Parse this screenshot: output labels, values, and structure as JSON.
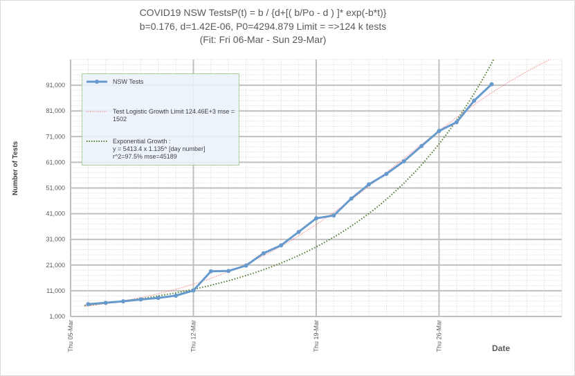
{
  "title": {
    "line1": "COVID19  NSW TestsP(t) = b / {d+[( b/Po - d ) ]* exp(-b*t)}",
    "line2": "b=0.176, d=1.42E-06, P0=4294.879  Limit = =>124 k tests",
    "line3": "(Fit: Fri 06-Mar - Sun 29-Mar)"
  },
  "colors": {
    "actual": "#6699cc",
    "logistic": "#ff6666",
    "exponential": "#4e7a2e",
    "grid_major": "#bfbfbf",
    "grid_minor": "#e6e6e6"
  },
  "chart_data": {
    "type": "line",
    "xlabel": "Date",
    "ylabel": "Number of Tests",
    "x_tick_labels": [
      "Thu 05-Mar",
      "Thu 12-Mar",
      "Thu 19-Mar",
      "Thu 26-Mar"
    ],
    "x_range_days": [
      0,
      28
    ],
    "y_ticks": [
      "1,000",
      "11,000",
      "21,000",
      "31,000",
      "41,000",
      "51,000",
      "61,000",
      "71,000",
      "81,000",
      "91,000"
    ],
    "ylim": [
      1000,
      101000
    ],
    "grid": true,
    "legend_position": "top-left",
    "series": [
      {
        "name": "NSW Tests",
        "style": "solid-markers",
        "x": [
          1,
          2,
          3,
          4,
          5,
          6,
          7,
          8,
          9,
          10,
          11,
          12,
          13,
          14,
          15,
          16,
          17,
          18,
          19,
          20,
          21,
          22,
          23,
          24
        ],
        "y": [
          5800,
          6300,
          6900,
          7600,
          8200,
          9100,
          11100,
          18600,
          18700,
          20800,
          25600,
          28700,
          33900,
          39200,
          40300,
          46900,
          52400,
          56500,
          61400,
          67300,
          73200,
          76600,
          85000,
          91400
        ]
      },
      {
        "name": "Test Logistic Growth Limit 124.46E+3 mse = 1502",
        "style": "dotted-thin",
        "formula": "logistic",
        "b": 0.176,
        "d": 1.42e-06,
        "P0": 4294.879
      },
      {
        "name": "Exponential Growth :",
        "label_lines": [
          "y = 5413.4 x 1.135^ [day number]",
          "r^2=97.5% mse=45189"
        ],
        "style": "dotted-thick",
        "formula": "exponential",
        "a": 5413.4,
        "base": 1.135
      }
    ]
  }
}
